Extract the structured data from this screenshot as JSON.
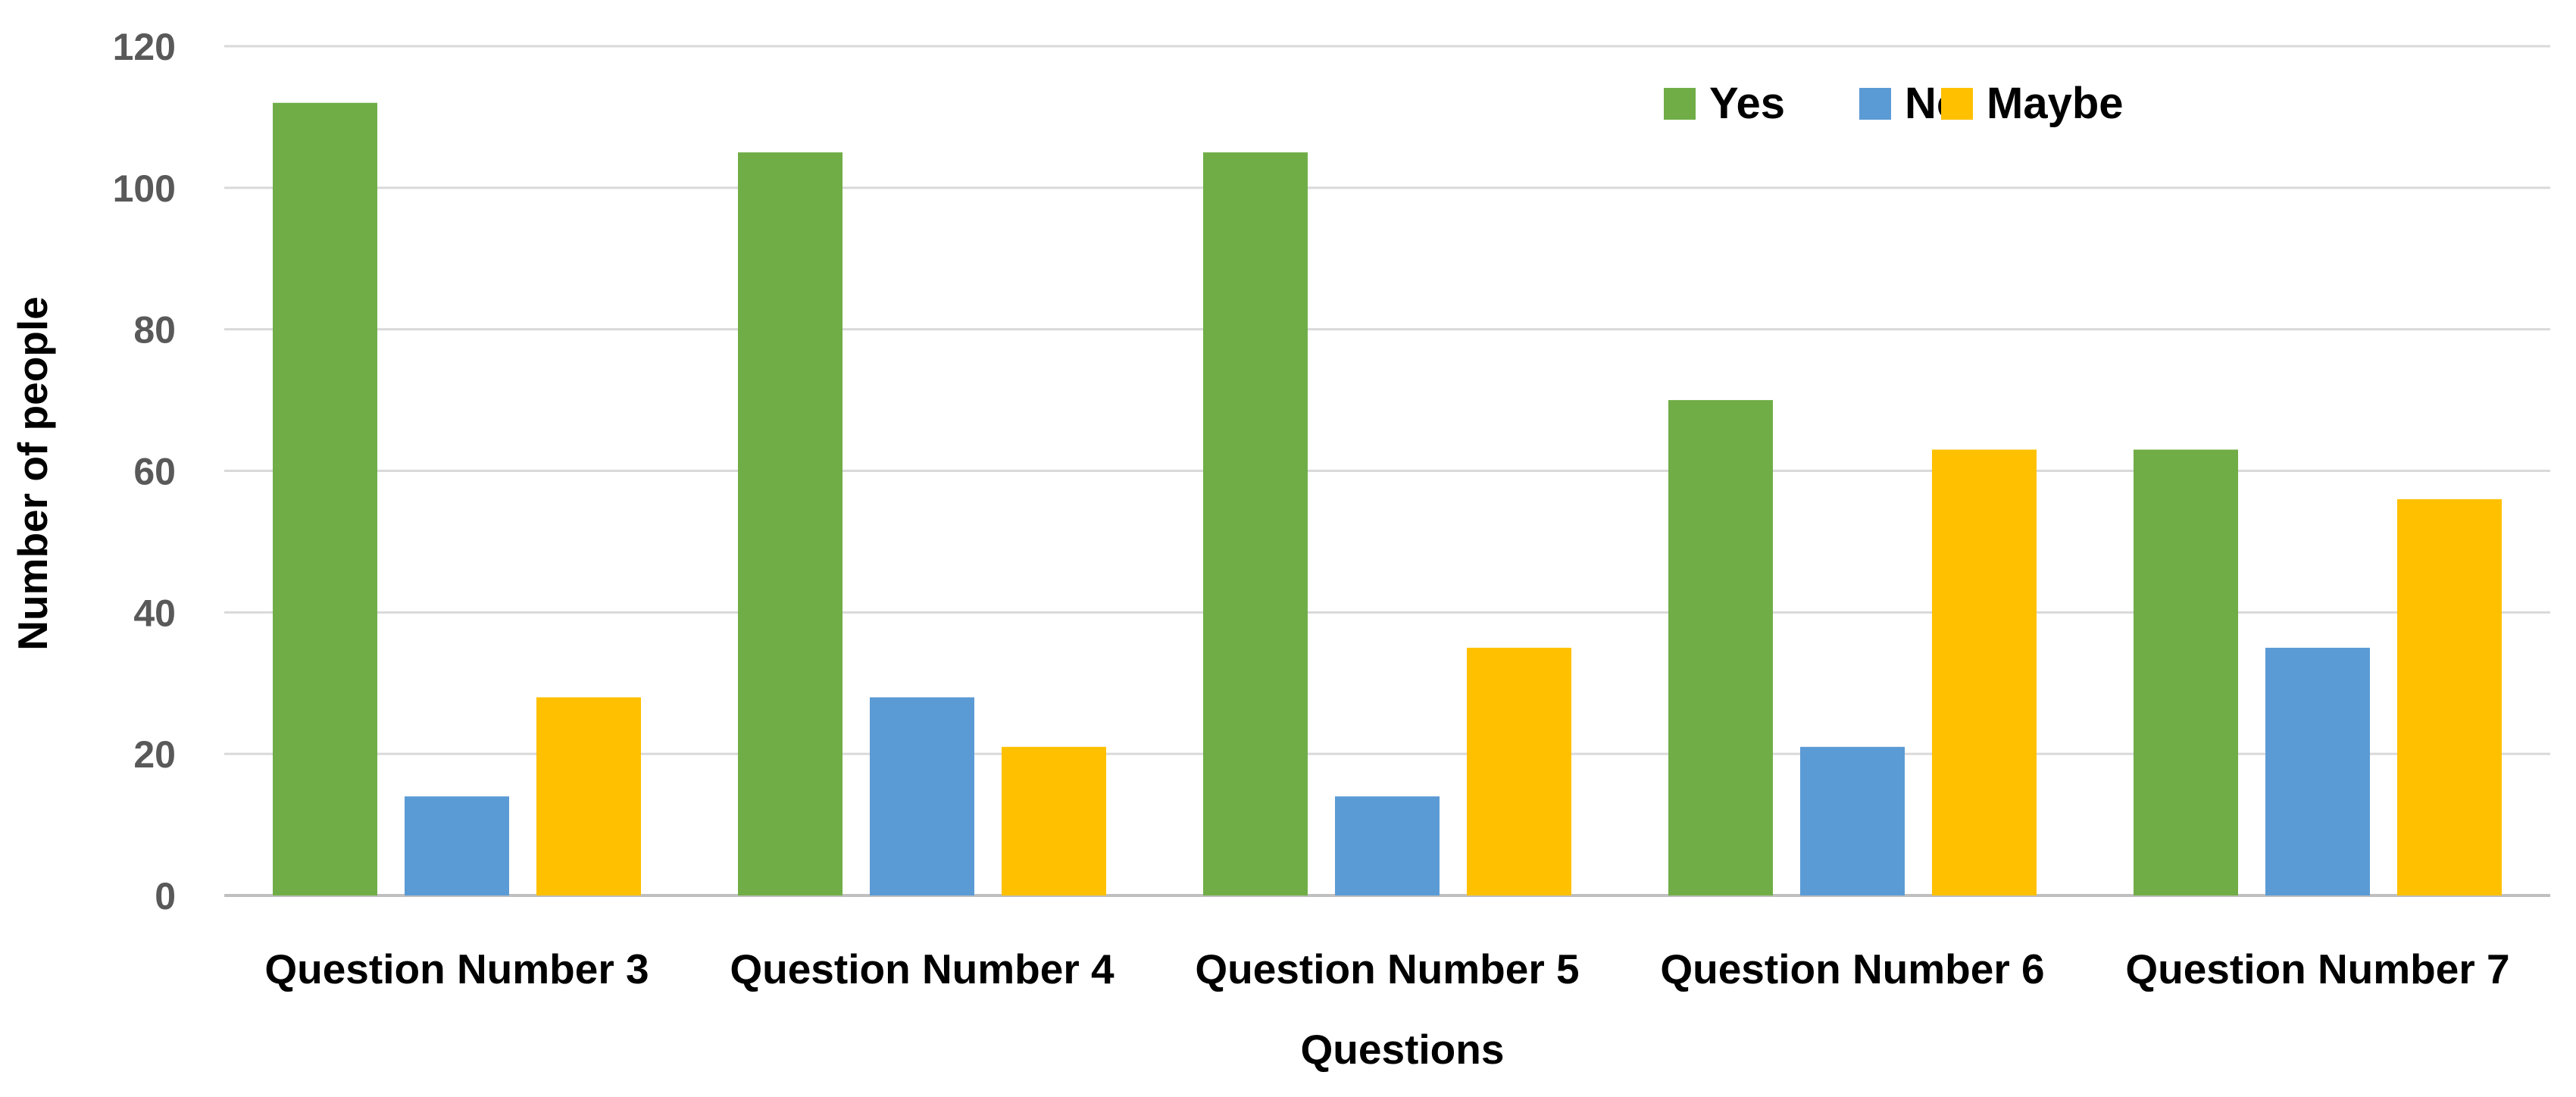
{
  "chart_data": {
    "type": "bar",
    "title": "",
    "xlabel": "Questions",
    "ylabel": "Number of people",
    "ylim": [
      0,
      120
    ],
    "yticks": [
      0,
      20,
      40,
      60,
      80,
      100,
      120
    ],
    "grid": true,
    "legend_position": "top-right",
    "categories": [
      "Question Number 3",
      "Question Number 4",
      "Question Number 5",
      "Question Number 6",
      "Question Number 7"
    ],
    "series": [
      {
        "name": "Yes",
        "color": "#70AD47",
        "values": [
          112,
          105,
          105,
          70,
          63
        ]
      },
      {
        "name": "No",
        "color": "#5B9BD5",
        "values": [
          14,
          28,
          14,
          21,
          35
        ]
      },
      {
        "name": "Maybe",
        "color": "#FFC000",
        "values": [
          28,
          21,
          35,
          63,
          56
        ]
      }
    ]
  }
}
